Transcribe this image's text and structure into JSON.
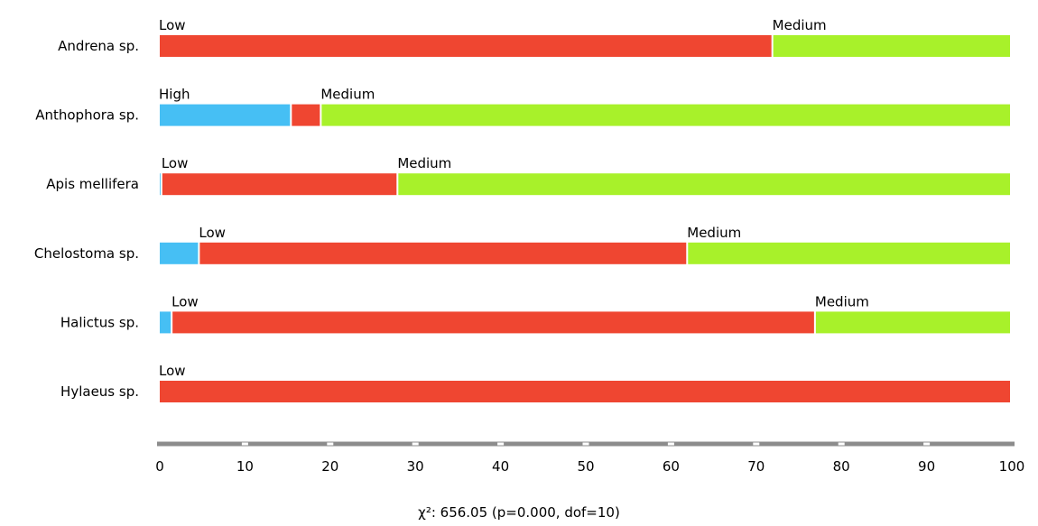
{
  "chart_data": {
    "type": "bar",
    "orientation": "horizontal",
    "stacked": true,
    "categories": [
      "Andrena sp.",
      "Anthophora sp.",
      "Apis mellifera",
      "Chelostoma sp.",
      "Halictus sp.",
      "Hylaeus sp."
    ],
    "series": [
      {
        "name": "High",
        "color": "#46bff4",
        "values": [
          0,
          15.5,
          0.3,
          4.7,
          1.5,
          0
        ]
      },
      {
        "name": "Low",
        "color": "#ef4631",
        "values": [
          72,
          3.5,
          27.7,
          57.3,
          75.5,
          100
        ]
      },
      {
        "name": "Medium",
        "color": "#a8f12a",
        "values": [
          28,
          81,
          72,
          38,
          23,
          0
        ]
      }
    ],
    "segment_labels": [
      [
        {
          "series": "Low",
          "text": "Low"
        },
        {
          "series": "Medium",
          "text": "Medium"
        }
      ],
      [
        {
          "series": "High",
          "text": "High"
        },
        {
          "series": "Medium",
          "text": "Medium"
        }
      ],
      [
        {
          "series": "Low",
          "text": "Low"
        },
        {
          "series": "Medium",
          "text": "Medium"
        }
      ],
      [
        {
          "series": "Low",
          "text": "Low"
        },
        {
          "series": "Medium",
          "text": "Medium"
        }
      ],
      [
        {
          "series": "Low",
          "text": "Low"
        },
        {
          "series": "Medium",
          "text": "Medium"
        }
      ],
      [
        {
          "series": "Low",
          "text": "Low"
        }
      ]
    ],
    "xlim": [
      0,
      100
    ],
    "xticks": [
      0,
      10,
      20,
      30,
      40,
      50,
      60,
      70,
      80,
      90,
      100
    ],
    "grid": false,
    "legend": "none",
    "statistic": "χ²: 656.05 (p=0.000, dof=10)"
  }
}
